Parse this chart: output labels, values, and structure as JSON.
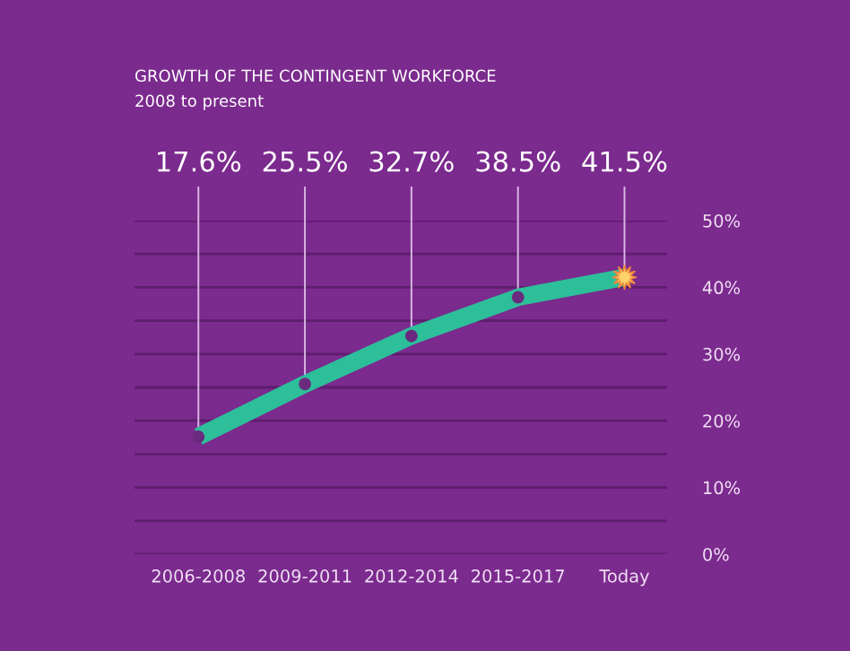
{
  "chart_data": {
    "type": "line",
    "title": "GROWTH OF THE CONTINGENT WORKFORCE",
    "subtitle": "2008 to present",
    "categories": [
      "2006-2008",
      "2009-2011",
      "2012-2014",
      "2015-2017",
      "Today"
    ],
    "series": [
      {
        "color": "#2dbf9a",
        "values": [
          17.6,
          25.5,
          32.7,
          38.5,
          41.5
        ],
        "value_labels": [
          "17.6%",
          "25.5%",
          "32.7%",
          "38.5%",
          "41.5%"
        ]
      }
    ],
    "ylim": [
      0,
      50
    ],
    "yticks": [
      {
        "value": 0,
        "label": "0%"
      },
      {
        "value": 5,
        "label": null
      },
      {
        "value": 10,
        "label": "10%"
      },
      {
        "value": 15,
        "label": null
      },
      {
        "value": 20,
        "label": "20%"
      },
      {
        "value": 25,
        "label": null
      },
      {
        "value": 30,
        "label": "30%"
      },
      {
        "value": 35,
        "label": null
      },
      {
        "value": 40,
        "label": "40%"
      },
      {
        "value": 45,
        "label": null
      },
      {
        "value": 50,
        "label": "50%"
      }
    ],
    "grid": "y",
    "marker": "circle",
    "line_style": "solid"
  }
}
